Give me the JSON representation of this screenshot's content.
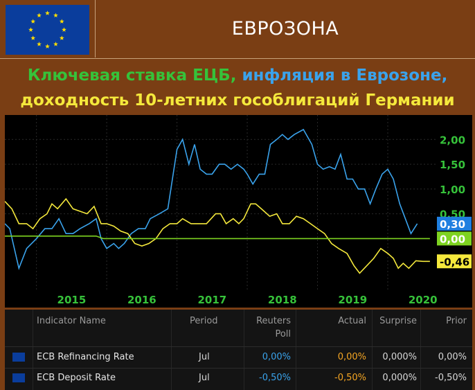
{
  "header": {
    "title": "ЕВРОЗОНА",
    "subtitle_line1_part1": "Ключевая ставка ЕЦБ,",
    "subtitle_line1_part2": " инфляция в Еврозоне,",
    "subtitle_line2": "доходность 10-летних гособлигаций Германии"
  },
  "colors": {
    "background": "#7a3e14",
    "ecb_rate": "#7ed321",
    "inflation": "#3aa3ec",
    "bund_yield": "#f5e93c"
  },
  "chart_data": {
    "type": "line",
    "x_ticks": [
      "2015",
      "2016",
      "2017",
      "2018",
      "2019",
      "2020"
    ],
    "y_ticks": [
      "2,00",
      "1,50",
      "1,00",
      "0,50"
    ],
    "ylim": [
      -0.75,
      2.2
    ],
    "x_start": 2014.55,
    "x_end": 2020.68,
    "series": [
      {
        "color": "#3aa3ec",
        "last_label": "0,30",
        "points": [
          [
            2014.55,
            0.3
          ],
          [
            2014.62,
            0.2
          ],
          [
            2014.75,
            -0.6
          ],
          [
            2014.86,
            -0.2
          ],
          [
            2015.0,
            0.0
          ],
          [
            2015.12,
            0.2
          ],
          [
            2015.22,
            0.2
          ],
          [
            2015.32,
            0.4
          ],
          [
            2015.42,
            0.1
          ],
          [
            2015.52,
            0.1
          ],
          [
            2015.62,
            0.2
          ],
          [
            2015.75,
            0.3
          ],
          [
            2015.85,
            0.4
          ],
          [
            2015.92,
            0.0
          ],
          [
            2016.0,
            -0.2
          ],
          [
            2016.1,
            -0.1
          ],
          [
            2016.17,
            -0.2
          ],
          [
            2016.25,
            -0.1
          ],
          [
            2016.35,
            0.1
          ],
          [
            2016.45,
            0.2
          ],
          [
            2016.55,
            0.2
          ],
          [
            2016.62,
            0.4
          ],
          [
            2016.75,
            0.5
          ],
          [
            2016.87,
            0.6
          ],
          [
            2017.0,
            1.8
          ],
          [
            2017.08,
            2.0
          ],
          [
            2017.17,
            1.5
          ],
          [
            2017.25,
            1.9
          ],
          [
            2017.33,
            1.4
          ],
          [
            2017.42,
            1.3
          ],
          [
            2017.5,
            1.3
          ],
          [
            2017.6,
            1.5
          ],
          [
            2017.68,
            1.5
          ],
          [
            2017.77,
            1.4
          ],
          [
            2017.86,
            1.5
          ],
          [
            2017.95,
            1.4
          ],
          [
            2018.0,
            1.3
          ],
          [
            2018.08,
            1.1
          ],
          [
            2018.17,
            1.3
          ],
          [
            2018.25,
            1.3
          ],
          [
            2018.33,
            1.9
          ],
          [
            2018.42,
            2.0
          ],
          [
            2018.5,
            2.1
          ],
          [
            2018.58,
            2.0
          ],
          [
            2018.67,
            2.1
          ],
          [
            2018.8,
            2.2
          ],
          [
            2018.92,
            1.9
          ],
          [
            2019.0,
            1.5
          ],
          [
            2019.08,
            1.4
          ],
          [
            2019.17,
            1.45
          ],
          [
            2019.25,
            1.4
          ],
          [
            2019.33,
            1.7
          ],
          [
            2019.42,
            1.2
          ],
          [
            2019.5,
            1.2
          ],
          [
            2019.58,
            1.0
          ],
          [
            2019.67,
            1.0
          ],
          [
            2019.75,
            0.7
          ],
          [
            2019.83,
            1.0
          ],
          [
            2019.92,
            1.3
          ],
          [
            2020.0,
            1.4
          ],
          [
            2020.08,
            1.2
          ],
          [
            2020.17,
            0.7
          ],
          [
            2020.25,
            0.4
          ],
          [
            2020.33,
            0.1
          ],
          [
            2020.42,
            0.3
          ]
        ]
      },
      {
        "color": "#f5e93c",
        "last_label": "-0,46",
        "points": [
          [
            2014.55,
            0.75
          ],
          [
            2014.65,
            0.6
          ],
          [
            2014.75,
            0.3
          ],
          [
            2014.86,
            0.3
          ],
          [
            2014.95,
            0.2
          ],
          [
            2015.05,
            0.4
          ],
          [
            2015.15,
            0.5
          ],
          [
            2015.22,
            0.7
          ],
          [
            2015.3,
            0.6
          ],
          [
            2015.42,
            0.8
          ],
          [
            2015.52,
            0.6
          ],
          [
            2015.62,
            0.55
          ],
          [
            2015.72,
            0.5
          ],
          [
            2015.82,
            0.65
          ],
          [
            2015.92,
            0.3
          ],
          [
            2016.0,
            0.3
          ],
          [
            2016.1,
            0.25
          ],
          [
            2016.2,
            0.15
          ],
          [
            2016.3,
            0.1
          ],
          [
            2016.4,
            -0.1
          ],
          [
            2016.5,
            -0.15
          ],
          [
            2016.6,
            -0.1
          ],
          [
            2016.7,
            0.0
          ],
          [
            2016.8,
            0.2
          ],
          [
            2016.9,
            0.3
          ],
          [
            2017.0,
            0.3
          ],
          [
            2017.08,
            0.4
          ],
          [
            2017.2,
            0.3
          ],
          [
            2017.32,
            0.3
          ],
          [
            2017.42,
            0.3
          ],
          [
            2017.55,
            0.5
          ],
          [
            2017.62,
            0.5
          ],
          [
            2017.7,
            0.3
          ],
          [
            2017.8,
            0.4
          ],
          [
            2017.88,
            0.3
          ],
          [
            2017.95,
            0.4
          ],
          [
            2018.05,
            0.7
          ],
          [
            2018.12,
            0.7
          ],
          [
            2018.2,
            0.6
          ],
          [
            2018.32,
            0.45
          ],
          [
            2018.42,
            0.5
          ],
          [
            2018.5,
            0.3
          ],
          [
            2018.6,
            0.3
          ],
          [
            2018.7,
            0.45
          ],
          [
            2018.8,
            0.4
          ],
          [
            2018.9,
            0.3
          ],
          [
            2019.0,
            0.2
          ],
          [
            2019.1,
            0.1
          ],
          [
            2019.15,
            0.0
          ],
          [
            2019.2,
            -0.1
          ],
          [
            2019.3,
            -0.2
          ],
          [
            2019.42,
            -0.3
          ],
          [
            2019.52,
            -0.55
          ],
          [
            2019.6,
            -0.7
          ],
          [
            2019.7,
            -0.55
          ],
          [
            2019.8,
            -0.4
          ],
          [
            2019.9,
            -0.2
          ],
          [
            2020.0,
            -0.3
          ],
          [
            2020.08,
            -0.4
          ],
          [
            2020.15,
            -0.6
          ],
          [
            2020.22,
            -0.5
          ],
          [
            2020.3,
            -0.6
          ],
          [
            2020.4,
            -0.45
          ],
          [
            2020.5,
            -0.46
          ],
          [
            2020.6,
            -0.46
          ]
        ]
      },
      {
        "color": "#7ed321",
        "last_label": "0,00",
        "points": [
          [
            2014.55,
            0.05
          ],
          [
            2015.85,
            0.05
          ],
          [
            2015.95,
            0.0
          ],
          [
            2020.6,
            0.0
          ]
        ]
      }
    ]
  },
  "table": {
    "headers": {
      "indicator": "Indicator Name",
      "period": "Period",
      "poll_line1": "Reuters",
      "poll_line2": "Poll",
      "actual": "Actual",
      "surprise": "Surprise",
      "prior": "Prior"
    },
    "rows": [
      {
        "name": "ECB Refinancing Rate",
        "period": "Jul",
        "poll": "0,00%",
        "actual": "0,00%",
        "surprise": "0,000%",
        "prior": "0,00%"
      },
      {
        "name": "ECB Deposit Rate",
        "period": "Jul",
        "poll": "-0,50%",
        "actual": "-0,50%",
        "surprise": "0,000%",
        "prior": "-0,50%"
      }
    ]
  }
}
